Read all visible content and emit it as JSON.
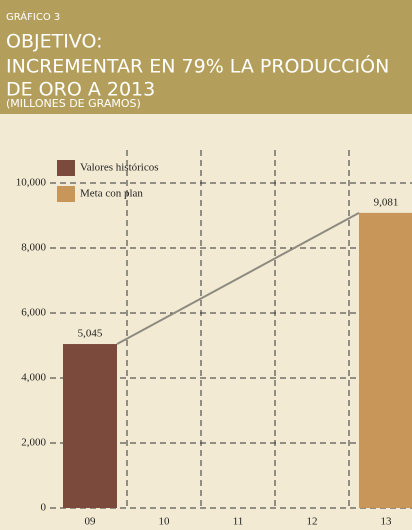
{
  "chart_data": {
    "type": "bar",
    "kicker": "GRÁFICO 3",
    "title": [
      "OBJETIVO:",
      "INCREMENTAR EN 79% LA PRODUCCIÓN",
      "DE ORO A 2013"
    ],
    "subtitle": "(MILLONES DE GRAMOS)",
    "categories": [
      "09",
      "10",
      "11",
      "12",
      "13"
    ],
    "series": [
      {
        "name": "Valores históricos",
        "color": "#7b4a3c",
        "values": [
          5045,
          null,
          null,
          null,
          null
        ],
        "value_labels": [
          "5,045",
          null,
          null,
          null,
          null
        ]
      },
      {
        "name": "Meta con plan",
        "color": "#c99659",
        "values": [
          null,
          null,
          null,
          null,
          9081
        ],
        "value_labels": [
          null,
          null,
          null,
          null,
          "9,081"
        ]
      }
    ],
    "ylim": [
      0,
      10000
    ],
    "yticks": [
      0,
      {
        "value": 2000,
        "label": "2,000"
      },
      {
        "value": 4000,
        "label": "4,000"
      },
      {
        "value": 6000,
        "label": "6,000"
      },
      {
        "value": 8000,
        "label": "8,000"
      },
      {
        "value": 10000,
        "label": "10,000"
      }
    ],
    "grid": true
  }
}
